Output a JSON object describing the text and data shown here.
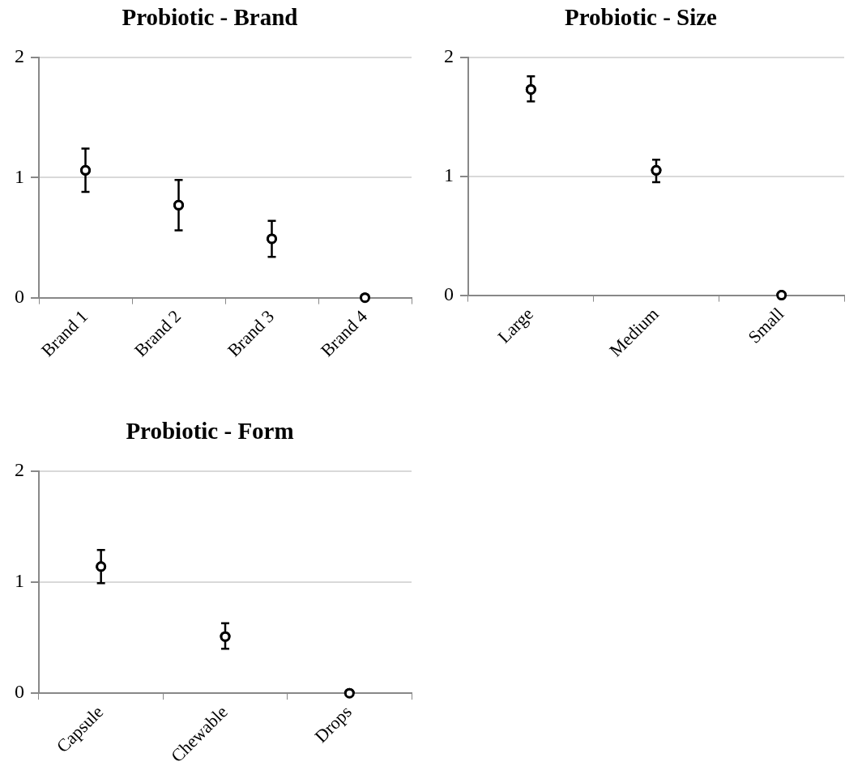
{
  "chart_data": [
    {
      "type": "scatter",
      "title": "Probiotic - Brand",
      "categories": [
        "Brand 1",
        "Brand 2",
        "Brand 3",
        "Brand 4"
      ],
      "values": [
        1.06,
        0.77,
        0.49,
        0
      ],
      "errors": [
        [
          0.88,
          1.24
        ],
        [
          0.56,
          0.98
        ],
        [
          0.34,
          0.64
        ],
        null
      ],
      "color": "#000000",
      "marker": "circle",
      "ylim": [
        0,
        2
      ],
      "yticks": [
        0,
        1,
        2
      ],
      "grid": "y"
    },
    {
      "type": "scatter",
      "title": "Probiotic - Size",
      "categories": [
        "Large",
        "Medium",
        "Small"
      ],
      "values": [
        1.73,
        1.05,
        0
      ],
      "errors": [
        [
          1.63,
          1.84
        ],
        [
          0.95,
          1.14
        ],
        null
      ],
      "color": "#000000",
      "marker": "circle",
      "ylim": [
        0,
        2
      ],
      "yticks": [
        0,
        1,
        2
      ],
      "grid": "y"
    },
    {
      "type": "scatter",
      "title": "Probiotic - Form",
      "categories": [
        "Capsule",
        "Chewable",
        "Drops"
      ],
      "values": [
        1.14,
        0.51,
        0
      ],
      "errors": [
        [
          0.99,
          1.29
        ],
        [
          0.4,
          0.63
        ],
        null
      ],
      "color": "#000000",
      "marker": "circle",
      "ylim": [
        0,
        2
      ],
      "yticks": [
        0,
        1,
        2
      ],
      "grid": "y"
    }
  ]
}
